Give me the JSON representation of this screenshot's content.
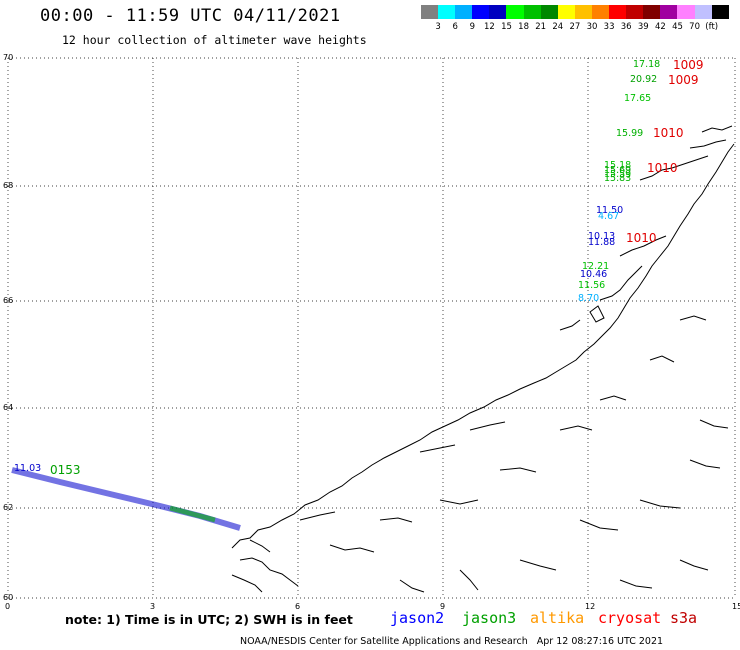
{
  "header": {
    "title": "00:00 - 11:59 UTC 04/11/2021",
    "subtitle": "12 hour collection of altimeter wave heights"
  },
  "colorbar": {
    "colors": [
      "#808080",
      "#00ffff",
      "#00b0ff",
      "#0000ff",
      "#0000c0",
      "#00ff00",
      "#00c000",
      "#008800",
      "#ffff00",
      "#ffc000",
      "#ff8000",
      "#ff0000",
      "#c00000",
      "#800000",
      "#a000a0",
      "#ff80ff",
      "#c0c0ff",
      "#000000"
    ],
    "labels": [
      "3",
      "6",
      "9",
      "12",
      "15",
      "18",
      "21",
      "24",
      "27",
      "30",
      "33",
      "36",
      "39",
      "42",
      "45",
      "70",
      "(ft)"
    ]
  },
  "axes": {
    "y_ticks": [
      "70",
      "68",
      "66",
      "64",
      "62",
      "60"
    ],
    "x_ticks": [
      "0",
      "3",
      "6",
      "9",
      "12",
      "15"
    ]
  },
  "observations": [
    {
      "text": "17.18",
      "color": "#00b000"
    },
    {
      "text": "20.92",
      "color": "#00a000"
    },
    {
      "text": "17.65",
      "color": "#00c000"
    },
    {
      "text": "15.99",
      "color": "#00b000"
    },
    {
      "text": "15.18",
      "color": "#00c000"
    },
    {
      "text": "15.69",
      "color": "#00a000"
    },
    {
      "text": "15.59",
      "color": "#00c000"
    },
    {
      "text": "15.83",
      "color": "#00b000"
    },
    {
      "text": "11.50",
      "color": "#0000cc"
    },
    {
      "text": "4.67",
      "color": "#00b0ff"
    },
    {
      "text": "10.13",
      "color": "#0000cc"
    },
    {
      "text": "11.88",
      "color": "#0000cc"
    },
    {
      "text": "12.21",
      "color": "#00c000"
    },
    {
      "text": "10.46",
      "color": "#0000cc"
    },
    {
      "text": "11.56",
      "color": "#00c000"
    },
    {
      "text": "8.70",
      "color": "#00b0ff"
    },
    {
      "text": "11.03",
      "color": "#0000cc"
    },
    {
      "text": "0153",
      "color": "#00a000"
    }
  ],
  "pressures": [
    "1009",
    "1009",
    "1010",
    "1010",
    "1010"
  ],
  "legend": {
    "note": "note: 1) Time is in UTC; 2) SWH is in feet",
    "sats": [
      {
        "name": "jason2",
        "color": "#0000ff"
      },
      {
        "name": "jason3",
        "color": "#00a000"
      },
      {
        "name": "altika",
        "color": "#ff9900"
      },
      {
        "name": "cryosat",
        "color": "#ff0000"
      },
      {
        "name": "s3a",
        "color": "#c00000"
      }
    ]
  },
  "footer": "NOAA/NESDIS Center for Satellite Applications and Research   Apr 12 08:27:16 UTC 2021"
}
